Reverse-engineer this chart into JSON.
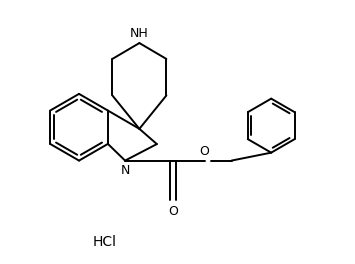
{
  "background_color": "#ffffff",
  "line_color": "#000000",
  "line_width": 1.4,
  "text_color": "#000000",
  "NH_label": "NH",
  "N_label": "N",
  "O_carbonyl": "O",
  "O_ether": "O",
  "HCl_label": "HCl",
  "figsize": [
    3.55,
    2.64
  ],
  "dpi": 100,
  "xlim": [
    0,
    11
  ],
  "ylim": [
    0,
    8
  ]
}
